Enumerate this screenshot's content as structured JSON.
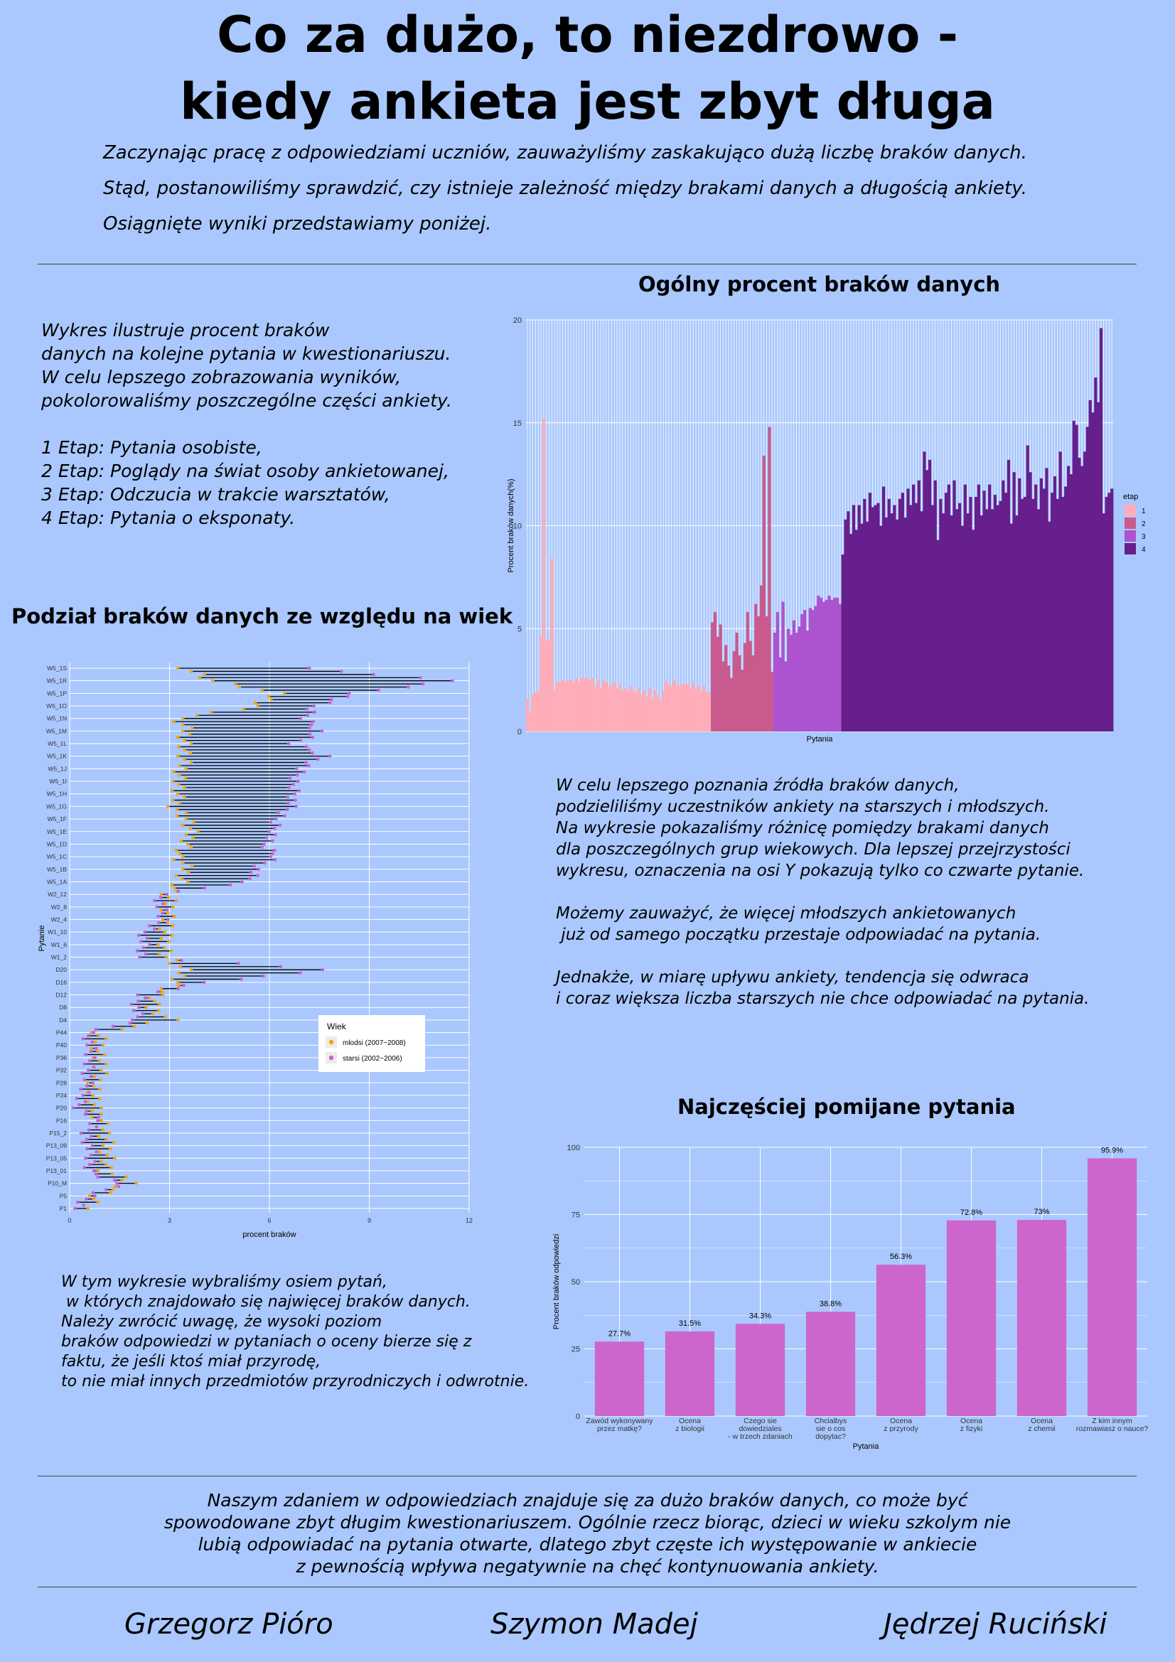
{
  "title_line1": "Co za dużo, to niezdrowo -",
  "title_line2": "kiedy ankieta jest zbyt długa",
  "intro": [
    "Zaczynając pracę z odpowiedziami uczniów, zauważyliśmy zaskakująco dużą liczbę braków danych.",
    "Stąd, postanowiliśmy sprawdzić, czy istnieje zależność między  brakami danych a długością ankiety.",
    "Osiągnięte wyniki przedstawiamy poniżej."
  ],
  "left_text_1": "Wykres ilustruje procent braków\ndanych na kolejne pytania w kwestionariuszu.\nW celu lepszego zobrazowania wyników,\npokolorowaliśmy poszczególne części ankiety.\n\n1 Etap: Pytania osobiste,\n2 Etap: Poglądy na świat osoby ankietowanej,\n3 Etap: Odczucia w trakcie warsztatów,\n4 Etap: Pytania o eksponaty.",
  "section_age": "Podział braków danych ze względu na wiek",
  "left_text_2": "W tym wykresie wybraliśmy osiem pytań,\n w których znajdowało się najwięcej braków danych.\nNależy zwrócić uwagę, że wysoki poziom\nbraków odpowiedzi w pytaniach o oceny bierze się z\nfaktu, że jeśli ktoś miał przyrodę,\nto nie miał innych przedmiotów przyrodniczych i odwrotnie.",
  "right_text_1": "W celu lepszego poznania źródła braków danych,\npodzieliliśmy uczestników ankiety na starszych i młodszych.\nNa wykresie pokazaliśmy różnicę pomiędzy brakami danych\ndla poszczególnych grup wiekowych. Dla lepszej przejrzystości\nwykresu, oznaczenia na osi Y pokazują tylko co czwarte pytanie.\n\nMożemy zauważyć, że więcej młodszych ankietowanych\n już od samego początku przestaje odpowiadać na pytania.\n\nJednakże, w miarę upływu ankiety, tendencja się odwraca\ni coraz większa liczba starszych nie chce odpowiadać na pytania.",
  "conclusion": [
    "Naszym zdaniem w odpowiedziach znajduje się za dużo braków danych, co może być",
    "spowodowane zbyt długim kwestionariuszem. Ogólnie rzecz biorąc, dzieci w wieku szkolym nie",
    "lubią odpowiadać na pytania otwarte, dlatego zbyt częste ich występowanie w ankiecie",
    "z pewnością wpływa negatywnie na chęć kontynuowania ankiety."
  ],
  "authors": [
    "Grzegorz Pióro",
    "Szymon Madej",
    "Jędrzej Ruciński"
  ],
  "colors": {
    "background": "#aac8fd",
    "etap1": "#ffadb8",
    "etap2": "#c85a8e",
    "etap3": "#ad53cf",
    "etap4": "#661f8c",
    "young": "#f5a300",
    "old": "#cc5ed6",
    "topbar": "#cc66cc"
  },
  "chart_data": [
    {
      "type": "bar",
      "title": "Ogólny procent braków danych",
      "xlabel": "Pytania",
      "ylabel": "Procent braków danych(%)",
      "ylim": [
        0,
        20
      ],
      "yticks": [
        0,
        5,
        10,
        15,
        20
      ],
      "legend": {
        "title": "etap",
        "labels": [
          "1",
          "2",
          "3",
          "4"
        ],
        "position": "right"
      },
      "series": [
        {
          "name": "1",
          "values": [
            1.6,
            1.0,
            1.8,
            1.9,
            2.0,
            4.6,
            15.2,
            4.4,
            4.5,
            8.4,
            2.0,
            2.4,
            2.4,
            2.5,
            2.4,
            2.5,
            2.5,
            2.4,
            2.6,
            2.4,
            2.6,
            2.6,
            2.6,
            2.5,
            2.6,
            2.2,
            2.5,
            2.1,
            2.5,
            2.4,
            2.2,
            2.3,
            2.4,
            2.1,
            2.3,
            2.0,
            2.1,
            2.0,
            2.2,
            2.0,
            1.9,
            2.1,
            1.8,
            2.0,
            1.7,
            2.1,
            1.6,
            2.0,
            1.7,
            1.5,
            2.0,
            2.5,
            2.3,
            2.2,
            2.5,
            2.3,
            2.2,
            2.3,
            2.3,
            2.3,
            2.1,
            2.4,
            2.1,
            2.2,
            2.0,
            2.2,
            1.9,
            1.9
          ]
        },
        {
          "name": "2",
          "values": [
            5.3,
            5.8,
            4.6,
            5.2,
            3.4,
            4.2,
            3.2,
            2.6,
            3.9,
            4.8,
            3.7,
            3.0,
            4.3,
            5.8,
            4.4,
            3.7,
            6.2,
            5.6,
            7.1,
            13.4,
            5.6,
            14.8,
            2.9
          ]
        },
        {
          "name": "3",
          "values": [
            4.8,
            5.8,
            3.6,
            6.3,
            3.4,
            5.0,
            4.7,
            5.4,
            4.8,
            5.1,
            5.7,
            5.9,
            4.9,
            6.0,
            5.9,
            6.1,
            6.6,
            6.5,
            6.3,
            6.4,
            6.6,
            6.4,
            6.5,
            6.5,
            6.2
          ]
        },
        {
          "name": "4",
          "values": [
            8.6,
            10.3,
            10.7,
            9.6,
            11.0,
            9.8,
            11.0,
            10.1,
            11.3,
            10.2,
            11.6,
            10.9,
            11.0,
            11.1,
            10.0,
            11.9,
            10.4,
            11.3,
            10.6,
            11.0,
            10.3,
            11.3,
            11.6,
            10.4,
            11.8,
            11.0,
            12.0,
            11.1,
            12.2,
            10.7,
            13.6,
            12.7,
            13.2,
            11.0,
            12.2,
            9.3,
            11.3,
            10.6,
            11.6,
            12.0,
            10.5,
            12.2,
            10.8,
            11.1,
            10.0,
            12.0,
            10.6,
            11.4,
            9.8,
            11.4,
            12.0,
            10.5,
            11.7,
            10.8,
            12.0,
            10.8,
            11.5,
            11.0,
            11.2,
            12.2,
            11.6,
            13.2,
            10.1,
            12.6,
            10.5,
            12.3,
            11.3,
            11.4,
            13.9,
            12.6,
            11.3,
            12.0,
            10.8,
            12.3,
            11.8,
            12.8,
            10.2,
            11.6,
            12.4,
            11.3,
            13.6,
            11.4,
            11.9,
            12.9,
            12.5,
            15.1,
            14.9,
            13.3,
            12.9,
            13.6,
            14.8,
            16.1,
            15.5,
            17.2,
            16.0,
            19.6,
            10.6,
            11.4,
            11.6,
            11.8
          ]
        }
      ]
    },
    {
      "type": "scatter",
      "title": "Podział braków danych ze względu na wiek",
      "xlabel": "procent braków",
      "ylabel": "Pytanie",
      "xlim": [
        0,
        12
      ],
      "xticks": [
        0,
        3,
        6,
        9,
        12
      ],
      "legend": {
        "title": "Wiek",
        "labels": [
          "mlodsi (2007−2008)",
          "starsi (2002−2006)"
        ],
        "position": "inside bottom-right"
      },
      "y_labels": [
        "W5_1S",
        "W5_1R",
        "W5_1P",
        "W5_1O",
        "W5_1N",
        "W5_1M",
        "W5_1L",
        "W5_1K",
        "W5_1J",
        "W5_1I",
        "W5_1H",
        "W5_1G",
        "W5_1F",
        "W5_1E",
        "W5_1D",
        "W5_1C",
        "W5_1B",
        "W5_1A",
        "W2_12",
        "W2_8",
        "W2_4",
        "W1_10",
        "W1_6",
        "W1_2",
        "D20",
        "D16",
        "D12",
        "D8",
        "D4",
        "P44",
        "P40",
        "P36",
        "P32",
        "P28",
        "P24",
        "P20",
        "P16",
        "P15_2",
        "P13_09",
        "P13_05",
        "P13_01",
        "P10_M",
        "P5",
        "P1"
      ],
      "young": [
        3.5,
        4.3,
        6.2,
        5.7,
        3.2,
        3.5,
        3.5,
        3.4,
        3.4,
        3.3,
        3.2,
        3.2,
        3.5,
        3.6,
        3.6,
        3.2,
        3.5,
        3.4,
        2.9,
        3.0,
        3.0,
        2.8,
        2.9,
        2.9,
        3.4,
        3.3,
        2.6,
        2.4,
        3.1,
        0.8,
        0.9,
        0.9,
        0.9,
        0.8,
        0.7,
        0.7,
        1.0,
        1.0,
        1.1,
        1.2,
        1.0,
        1.9,
        0.8,
        0.5
      ],
      "old": [
        7.0,
        11.5,
        8.6,
        7.3,
        7.1,
        7.5,
        6.7,
        7.7,
        6.9,
        6.7,
        6.8,
        6.6,
        6.2,
        6.2,
        5.8,
        6.2,
        5.6,
        5.3,
        2.8,
        2.7,
        2.8,
        2.3,
        2.2,
        2.1,
        7.8,
        4.0,
        2.2,
        2.0,
        2.0,
        0.6,
        0.6,
        0.6,
        0.6,
        0.5,
        0.4,
        0.3,
        0.8,
        0.5,
        0.6,
        0.6,
        0.6,
        1.5,
        0.6,
        0.2
      ]
    },
    {
      "type": "bar",
      "title": "Najczęściej pomijane pytania",
      "xlabel": "Pytania",
      "ylabel": "Procent braków odpowiedzi",
      "ylim": [
        0,
        100
      ],
      "yticks": [
        0,
        25,
        50,
        75,
        100
      ],
      "categories": [
        "Zawód wykonywany\nprzez matkę?",
        "Ocena\nz biologii",
        "Czego sie\ndowiedziales\n- w trzech zdaniach",
        "Chcialbys\nsie o cos\ndopytac?",
        "Ocena\nz przyrody",
        "Ocena\nz fizyki",
        "Ocena\nz chemii",
        "Z kim innym\nrozmawiasz o nauce?"
      ],
      "values": [
        27.7,
        31.5,
        34.3,
        38.8,
        56.3,
        72.8,
        73,
        95.9
      ],
      "data_labels": [
        "27.7%",
        "31.5%",
        "34.3%",
        "38.8%",
        "56.3%",
        "72.8%",
        "73%",
        "95.9%"
      ]
    }
  ]
}
